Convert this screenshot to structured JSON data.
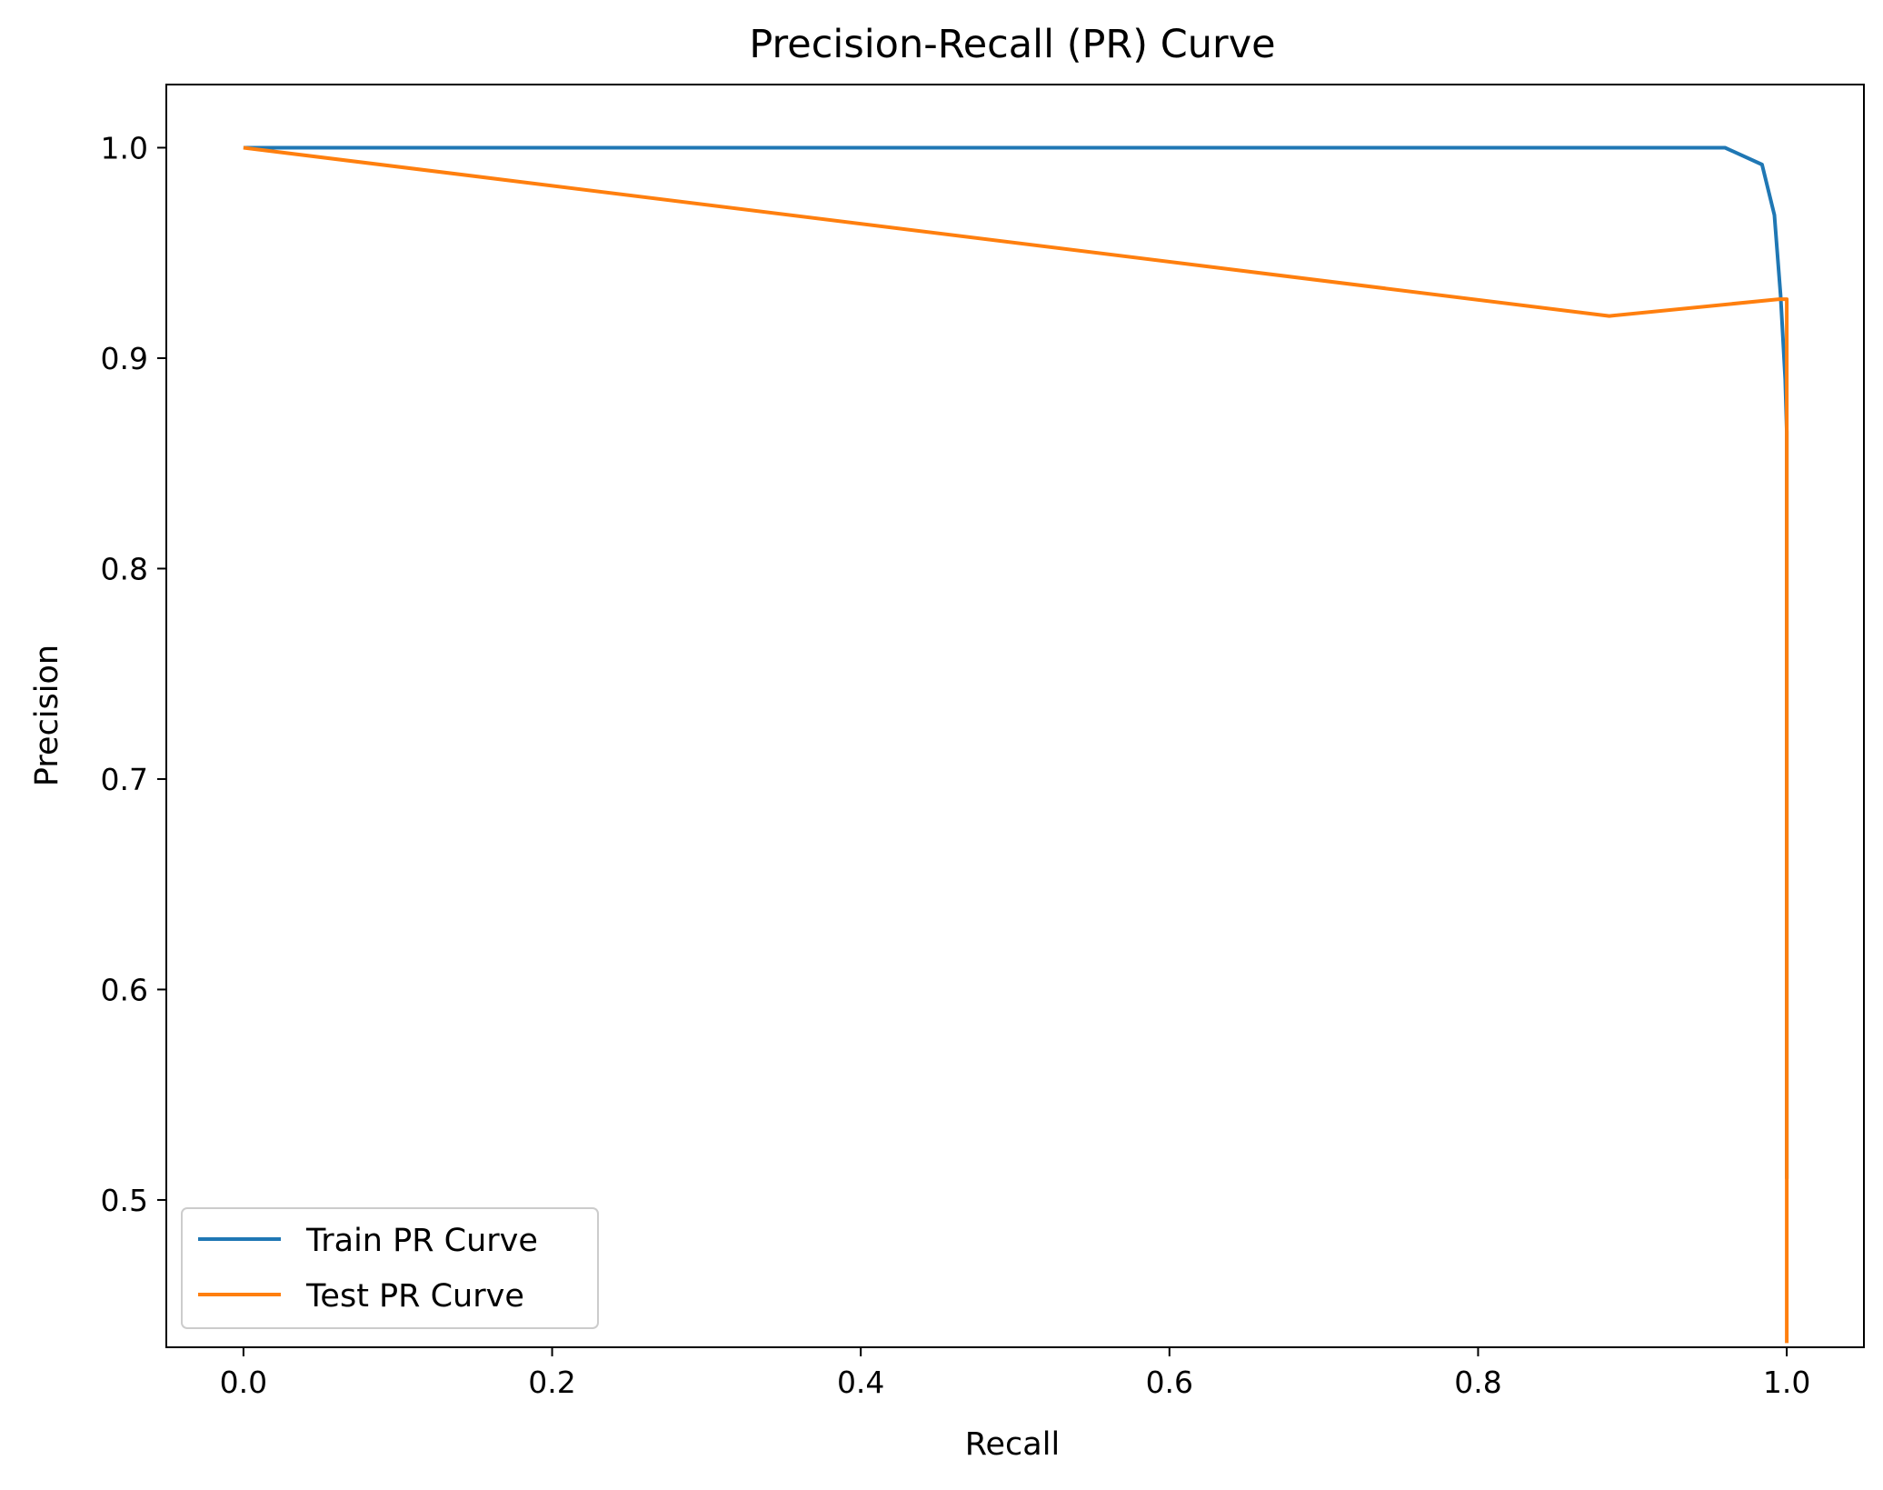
{
  "chart_data": {
    "type": "line",
    "title": "Precision-Recall (PR) Curve",
    "xlabel": "Recall",
    "ylabel": "Precision",
    "xlim": [
      -0.05,
      1.05
    ],
    "ylim": [
      0.43,
      1.03
    ],
    "xticks": [
      0.0,
      0.2,
      0.4,
      0.6,
      0.8,
      1.0
    ],
    "xtick_labels": [
      "0.0",
      "0.2",
      "0.4",
      "0.6",
      "0.8",
      "1.0"
    ],
    "yticks": [
      0.5,
      0.6,
      0.7,
      0.8,
      0.9,
      1.0
    ],
    "ytick_labels": [
      "0.5",
      "0.6",
      "0.7",
      "0.8",
      "0.9",
      "1.0"
    ],
    "grid": false,
    "legend_position": "lower-left",
    "series": [
      {
        "name": "Train PR Curve",
        "color": "#1f77b4",
        "points": [
          [
            0.0,
            1.0
          ],
          [
            0.96,
            1.0
          ],
          [
            0.984,
            0.992
          ],
          [
            0.992,
            0.968
          ],
          [
            0.996,
            0.93
          ],
          [
            0.999,
            0.89
          ],
          [
            1.0,
            0.865
          ],
          [
            1.0,
            0.51
          ]
        ]
      },
      {
        "name": "Test PR Curve",
        "color": "#ff7f0e",
        "points": [
          [
            0.0,
            1.0
          ],
          [
            0.885,
            0.92
          ],
          [
            0.995,
            0.928
          ],
          [
            1.0,
            0.928
          ],
          [
            1.0,
            0.865
          ],
          [
            1.0,
            0.432
          ]
        ]
      }
    ]
  }
}
